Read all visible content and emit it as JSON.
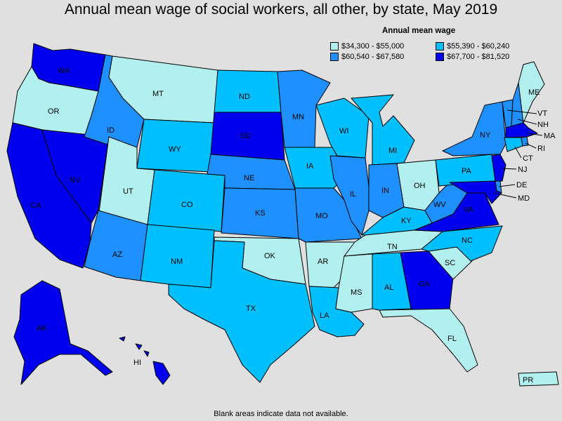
{
  "title": "Annual mean wage of social workers, all other, by state, May 2019",
  "legend": {
    "title": "Annual mean wage",
    "items": [
      {
        "label": "$34,300 - $55,000",
        "color": "#b2f0f0"
      },
      {
        "label": "$55,390 - $60,240",
        "color": "#00bfff"
      },
      {
        "label": "$60,540 - $67,580",
        "color": "#1e90ff"
      },
      {
        "label": "$67,700 - $81,520",
        "color": "#0000ee"
      }
    ]
  },
  "footnote": "Blank areas indicate data not available.",
  "states": {
    "WA": 3,
    "OR": 0,
    "CA": 3,
    "NV": 3,
    "ID": 2,
    "MT": 0,
    "WY": 1,
    "UT": 0,
    "AZ": 2,
    "CO": 1,
    "NM": 1,
    "ND": 1,
    "SD": 3,
    "NE": 2,
    "KS": 2,
    "OK": 0,
    "TX": 1,
    "MN": 2,
    "IA": 1,
    "MO": 2,
    "AR": 0,
    "LA": 1,
    "WI": 1,
    "IL": 2,
    "MI": 1,
    "IN": 2,
    "OH": 0,
    "KY": 1,
    "TN": 0,
    "MS": 0,
    "AL": 1,
    "GA": 3,
    "FL": 0,
    "SC": 0,
    "NC": 1,
    "VA": 3,
    "WV": 2,
    "PA": 1,
    "NY": 2,
    "VT": 2,
    "NH": 2,
    "ME": 0,
    "MA": 3,
    "RI": 2,
    "CT": 1,
    "NJ": 3,
    "DE": 2,
    "MD": 3,
    "AK": 3,
    "HI": 3,
    "PR": 0
  },
  "labels": {
    "WA": "WA",
    "OR": "OR",
    "CA": "CA",
    "NV": "NV",
    "ID": "ID",
    "MT": "MT",
    "WY": "WY",
    "UT": "UT",
    "AZ": "AZ",
    "CO": "CO",
    "NM": "NM",
    "ND": "ND",
    "SD": "SD",
    "NE": "NE",
    "KS": "KS",
    "OK": "OK",
    "TX": "TX",
    "MN": "MN",
    "IA": "IA",
    "MO": "MO",
    "AR": "AR",
    "LA": "LA",
    "WI": "WI",
    "IL": "IL",
    "MI": "MI",
    "IN": "IN",
    "OH": "OH",
    "KY": "KY",
    "TN": "TN",
    "MS": "MS",
    "AL": "AL",
    "GA": "GA",
    "FL": "FL",
    "SC": "SC",
    "NC": "NC",
    "VA": "VA",
    "WV": "WV",
    "PA": "PA",
    "NY": "NY",
    "VT": "VT",
    "NH": "NH",
    "ME": "ME",
    "MA": "MA",
    "RI": "RI",
    "CT": "CT",
    "NJ": "NJ",
    "DE": "DE",
    "MD": "MD",
    "AK": "AK",
    "HI": "HI",
    "PR": "PR"
  }
}
